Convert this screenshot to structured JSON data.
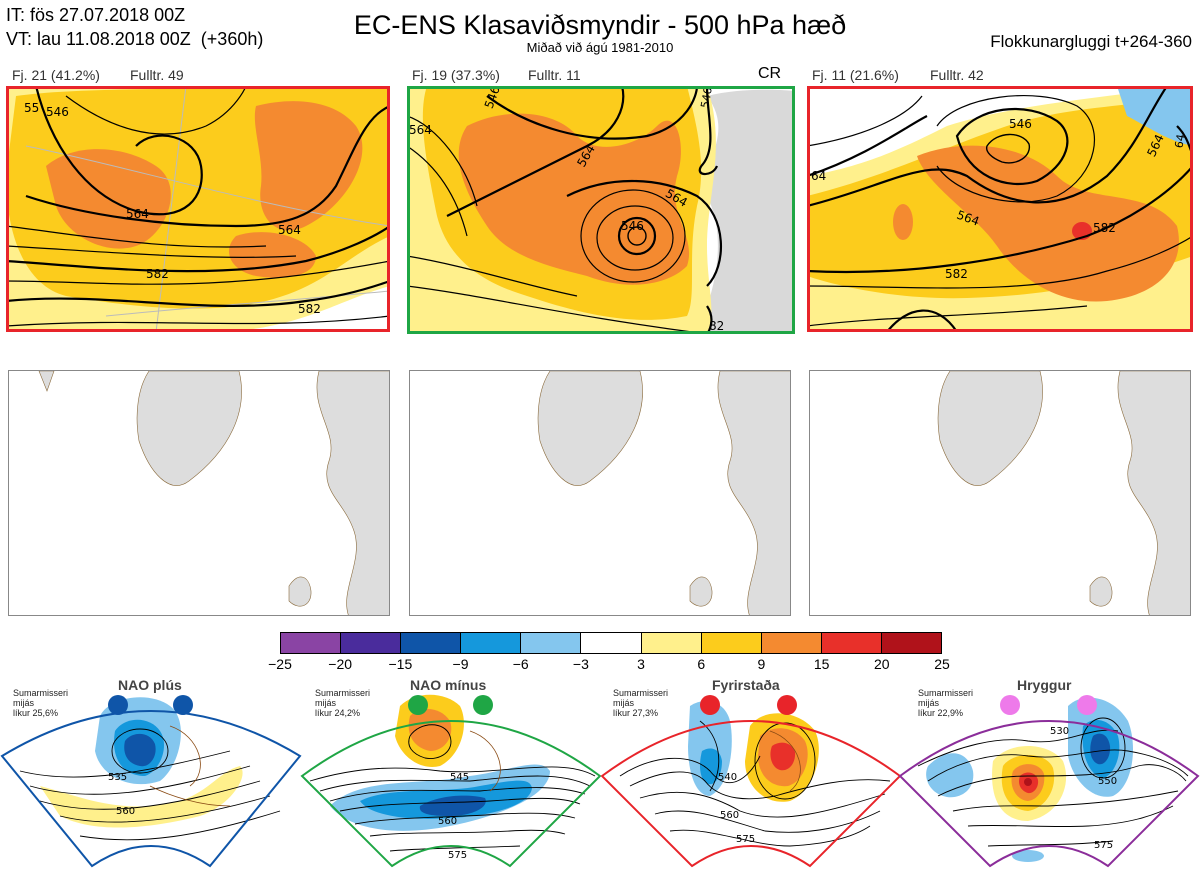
{
  "header": {
    "it": "IT: fös 27.07.2018 00Z",
    "vt": "VT: lau 11.08.2018 00Z  (+360h)",
    "title": "EC-ENS Klasaviðsmyndir - 500 hPa hæð",
    "subtitle": "Miðað við ágú 1981-2010",
    "window": "Flokkunargluggi t+264-360"
  },
  "clusters": [
    {
      "label": "Fj. 21 (41.2%)",
      "member": "Fulltr. 49",
      "tag": "",
      "frame_color": "#e8242a",
      "contours": [
        "546",
        "564",
        "564",
        "582",
        "582",
        "55"
      ]
    },
    {
      "label": "Fj. 19 (37.3%)",
      "member": "Fulltr. 11",
      "tag": "CR",
      "frame_color": "#1fa645",
      "contours": [
        "546",
        "564",
        "564",
        "546",
        "564",
        "82",
        "546"
      ]
    },
    {
      "label": "Fj. 11 (21.6%)",
      "member": "Fulltr. 42",
      "tag": "",
      "frame_color": "#e8242a",
      "contours": [
        "546",
        "564",
        "564",
        "582",
        "582",
        "64",
        "64"
      ]
    }
  ],
  "colorbar": {
    "ticks": [
      "−25",
      "−20",
      "−15",
      "−9",
      "−6",
      "−3",
      "3",
      "6",
      "9",
      "15",
      "20",
      "25"
    ],
    "colors": [
      "#8a44a4",
      "#4a2c9c",
      "#0f55a8",
      "#1598dc",
      "#84c6ee",
      "#ffffff",
      "#fff08c",
      "#fccc1c",
      "#f48a30",
      "#e8302a",
      "#b0121a"
    ]
  },
  "regimes": [
    {
      "name": "NAO plús",
      "season": "Sumarmisseri",
      "note": "mijás",
      "prob": "líkur 25,6%",
      "color": "#0f55a8",
      "contours": [
        "535",
        "560"
      ]
    },
    {
      "name": "NAO mínus",
      "season": "Sumarmisseri",
      "note": "mijás",
      "prob": "líkur 24,2%",
      "color": "#1fa645",
      "contours": [
        "545",
        "560",
        "575"
      ]
    },
    {
      "name": "Fyrirstaða",
      "season": "Sumarmisseri",
      "note": "mijás",
      "prob": "líkur 27,3%",
      "color": "#e8242a",
      "contours": [
        "540",
        "560",
        "575"
      ]
    },
    {
      "name": "Hryggur",
      "season": "Sumarmisseri",
      "note": "mijás",
      "prob": "líkur 22,9%",
      "color": "#8b2d9a",
      "contours": [
        "530",
        "550",
        "575"
      ]
    }
  ]
}
